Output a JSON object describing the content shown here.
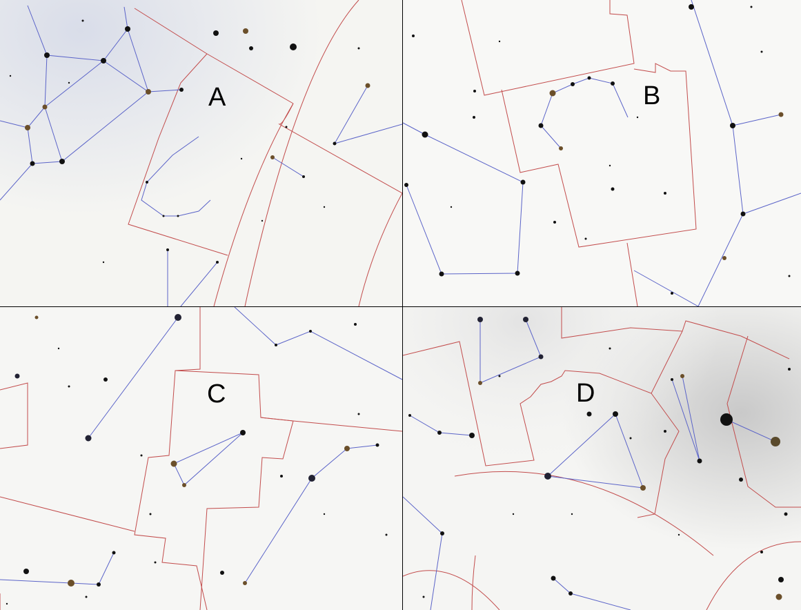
{
  "panels": [
    {
      "id": "a",
      "label": "A"
    },
    {
      "id": "b",
      "label": "B"
    },
    {
      "id": "c",
      "label": "C"
    },
    {
      "id": "d",
      "label": "D"
    }
  ],
  "colors": {
    "constellation_line": "#5a63c8",
    "boundary_line": "#c24b4b",
    "star": "#111111",
    "sky_background": "#f6f6f3",
    "haze": "#dfe2ec"
  }
}
